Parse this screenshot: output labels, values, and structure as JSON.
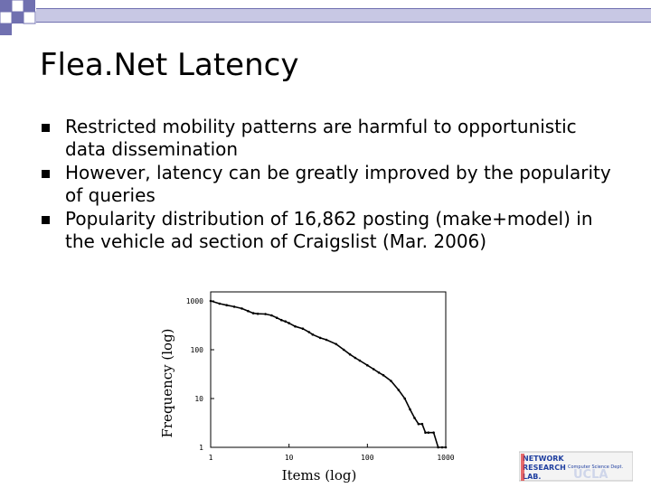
{
  "slide": {
    "title": "Flea.Net Latency",
    "bullets": [
      "Restricted mobility patterns are harmful to opportunistic data dissemination",
      "However, latency can be greatly improved by the popularity of queries",
      "Popularity distribution of 16,862 posting (make+model) in the vehicle ad section of Craigslist (Mar. 2006)"
    ]
  },
  "colors": {
    "accent_square": "#7070b0",
    "title_bar": "#7070b0",
    "logo_red": "#e03030",
    "logo_blue": "#1f3fa0"
  },
  "logo": {
    "line1": "NETWORK",
    "line2": "RESEARCH",
    "line3": "LAB.",
    "dept": "Computer Science Dept.",
    "school": "UCLA"
  },
  "chart_data": {
    "type": "line",
    "title": "",
    "xlabel": "Items (log)",
    "ylabel": "Frequency (log)",
    "xscale": "log",
    "yscale": "log",
    "xlim": [
      1,
      1000
    ],
    "ylim": [
      1,
      1000
    ],
    "xticks": [
      "1",
      "10",
      "100",
      "1000"
    ],
    "yticks": [
      "1",
      "10",
      "100",
      "1000"
    ],
    "grid": false,
    "series": [
      {
        "points": [
          [
            1,
            1000
          ],
          [
            1.3,
            880
          ],
          [
            1.6,
            820
          ],
          [
            2,
            760
          ],
          [
            2.5,
            700
          ],
          [
            3,
            620
          ],
          [
            3.5,
            560
          ],
          [
            4,
            545
          ],
          [
            5,
            540
          ],
          [
            6,
            505
          ],
          [
            7,
            450
          ],
          [
            8,
            405
          ],
          [
            9,
            380
          ],
          [
            10,
            350
          ],
          [
            12,
            300
          ],
          [
            15,
            270
          ],
          [
            18,
            230
          ],
          [
            20,
            205
          ],
          [
            25,
            175
          ],
          [
            30,
            160
          ],
          [
            40,
            130
          ],
          [
            50,
            100
          ],
          [
            60,
            80
          ],
          [
            70,
            68
          ],
          [
            80,
            60
          ],
          [
            100,
            48
          ],
          [
            120,
            40
          ],
          [
            140,
            34
          ],
          [
            160,
            30
          ],
          [
            200,
            23
          ],
          [
            250,
            15
          ],
          [
            300,
            10
          ],
          [
            350,
            6
          ],
          [
            400,
            4
          ],
          [
            450,
            3
          ],
          [
            500,
            3
          ],
          [
            550,
            2
          ],
          [
            600,
            2
          ],
          [
            700,
            2
          ],
          [
            800,
            1
          ],
          [
            900,
            1
          ],
          [
            1000,
            1
          ]
        ]
      }
    ]
  }
}
